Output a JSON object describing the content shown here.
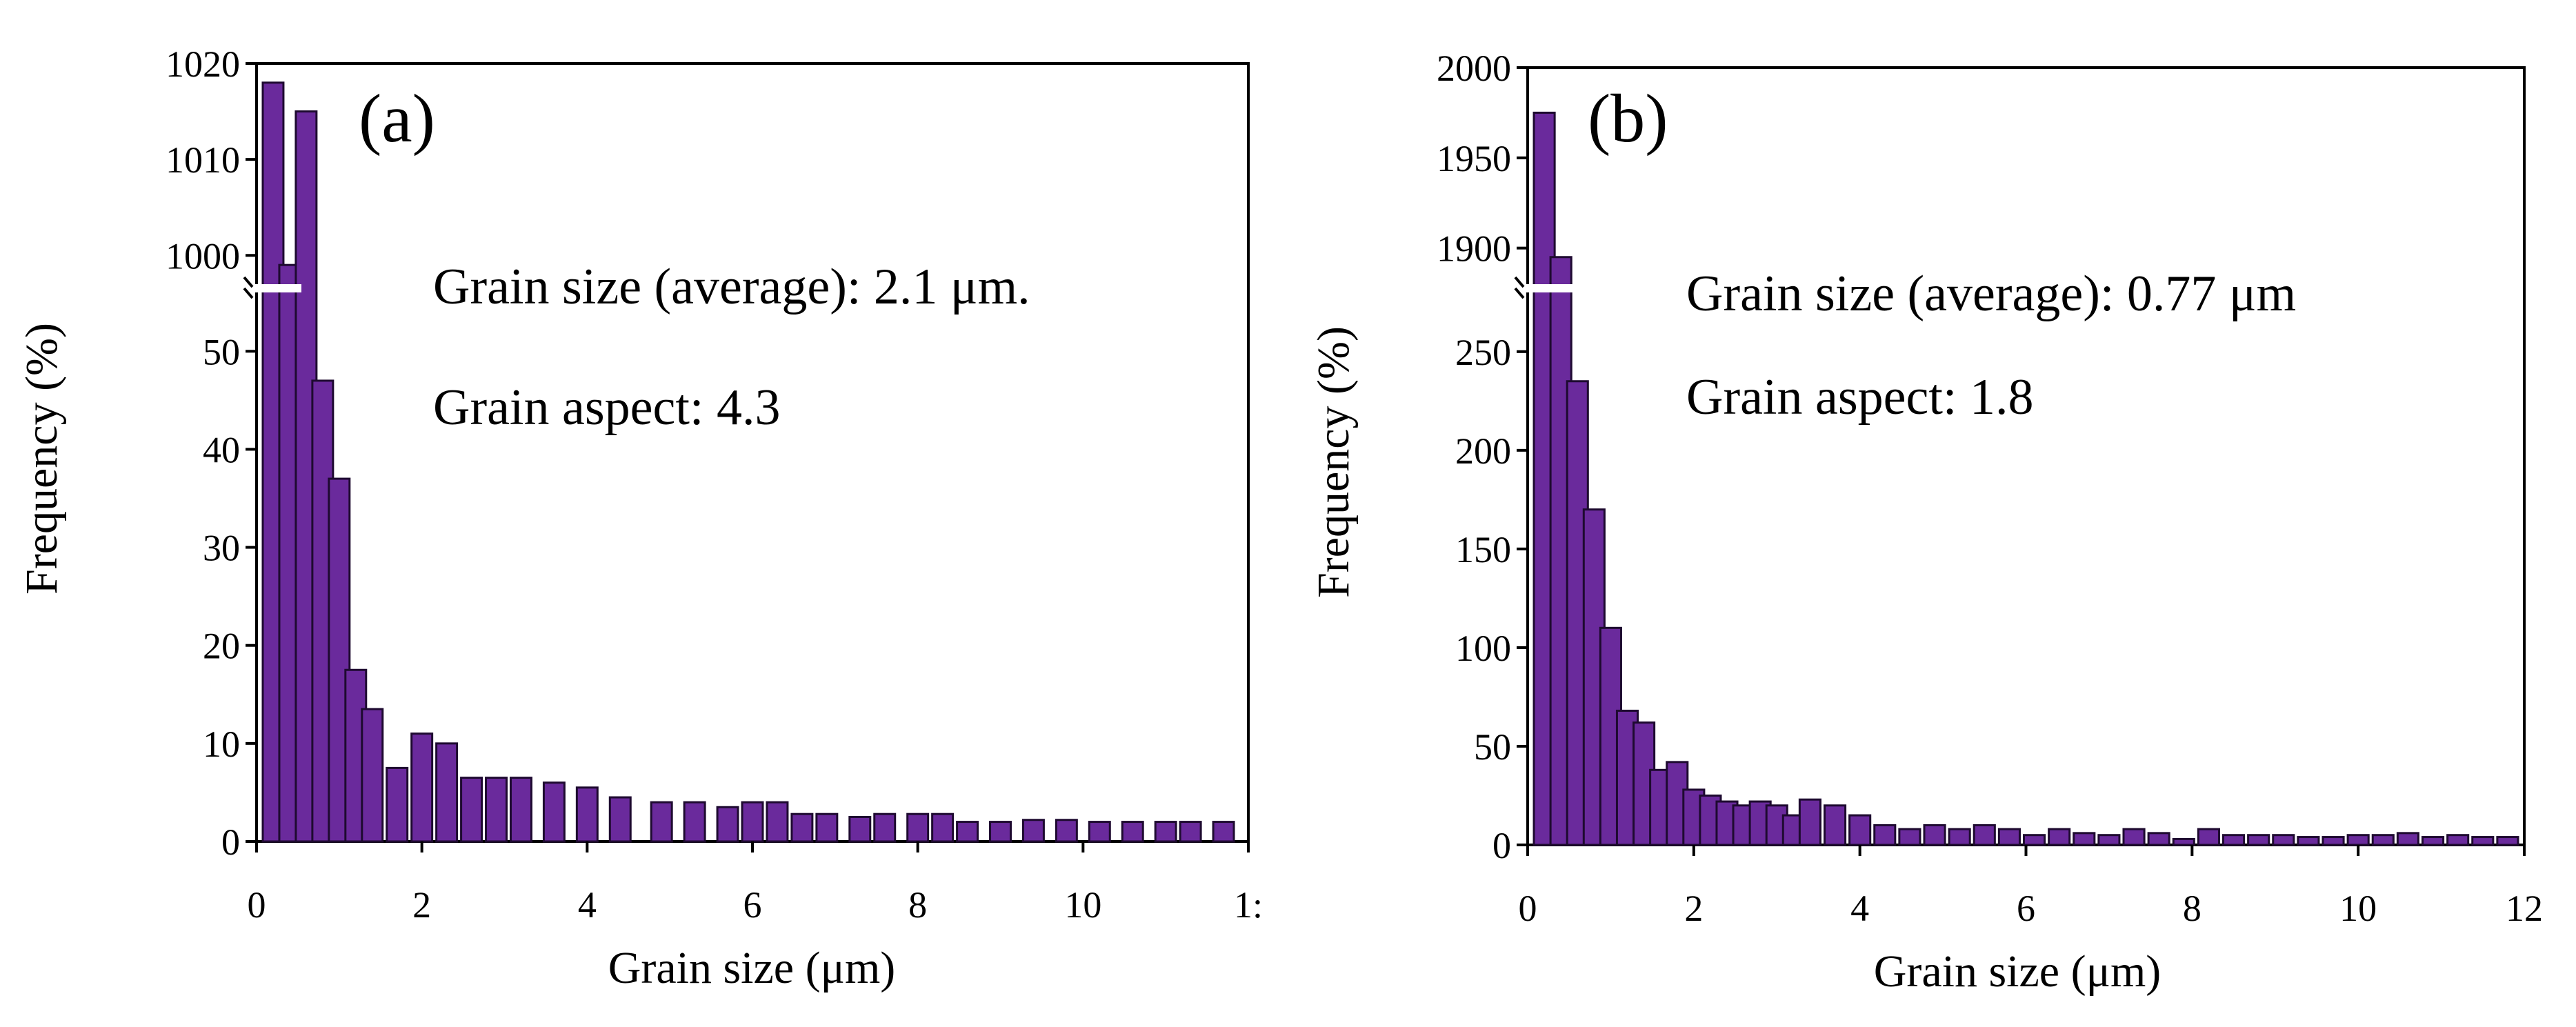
{
  "chart_data": [
    {
      "type": "bar",
      "panel_label": "(a)",
      "xlabel": "Grain size (μm)",
      "ylabel": "Frequency (%)",
      "annotations": [
        "Grain size (average): 2.1 μm.",
        "Grain aspect: 4.3"
      ],
      "xlim": [
        0,
        12
      ],
      "xticks": [
        "0",
        "2",
        "4",
        "6",
        "8",
        "10",
        "1:"
      ],
      "ylim_lower": [
        0,
        56
      ],
      "ylim_upper": [
        997,
        1020
      ],
      "yticks_lower": [
        "0",
        "10",
        "20",
        "30",
        "40",
        "50"
      ],
      "yticks_upper": [
        "1000",
        "1010",
        "1020"
      ],
      "bar_width": 0.25,
      "x": [
        0.2,
        0.4,
        0.6,
        0.8,
        1.0,
        1.2,
        1.4,
        1.7,
        2.0,
        2.3,
        2.6,
        2.9,
        3.2,
        3.6,
        4.0,
        4.4,
        4.9,
        5.3,
        5.7,
        6.0,
        6.3,
        6.6,
        6.9,
        7.3,
        7.6,
        8.0,
        8.3,
        8.6,
        9.0,
        9.4,
        9.8,
        10.2,
        10.6,
        11.0,
        11.3,
        11.7
      ],
      "values": [
        1018,
        999,
        1015,
        47,
        37,
        17.5,
        13.5,
        7.5,
        11,
        10,
        6.5,
        6.5,
        6.5,
        6,
        5.5,
        4.5,
        4,
        4,
        3.5,
        4,
        4,
        2.8,
        2.8,
        2.5,
        2.8,
        2.8,
        2.8,
        2.0,
        2.0,
        2.2,
        2.2,
        2.0,
        2.0,
        2.0,
        2.0,
        2.0
      ]
    },
    {
      "type": "bar",
      "panel_label": "(b)",
      "xlabel": "Grain size (μm)",
      "ylabel": "Frequency (%)",
      "annotations": [
        "Grain size (average): 0.77 μm",
        "Grain aspect: 1.8"
      ],
      "xlim": [
        0,
        12
      ],
      "xticks": [
        "0",
        "2",
        "4",
        "6",
        "8",
        "10",
        "12"
      ],
      "ylim_lower": [
        0,
        280
      ],
      "ylim_upper": [
        1880,
        2000
      ],
      "yticks_lower": [
        "0",
        "50",
        "100",
        "150",
        "200",
        "250"
      ],
      "yticks_upper": [
        "1900",
        "1950",
        "2000"
      ],
      "bar_width": 0.25,
      "x": [
        0.2,
        0.4,
        0.6,
        0.8,
        1.0,
        1.2,
        1.4,
        1.6,
        1.8,
        2.0,
        2.2,
        2.4,
        2.6,
        2.8,
        3.0,
        3.2,
        3.4,
        3.7,
        4.0,
        4.3,
        4.6,
        4.9,
        5.2,
        5.5,
        5.8,
        6.1,
        6.4,
        6.7,
        7.0,
        7.3,
        7.6,
        7.9,
        8.2,
        8.5,
        8.8,
        9.1,
        9.4,
        9.7,
        10.0,
        10.3,
        10.6,
        10.9,
        11.2,
        11.5,
        11.8
      ],
      "values": [
        1975,
        1895,
        235,
        170,
        110,
        68,
        62,
        38,
        42,
        28,
        25,
        22,
        20,
        22,
        20,
        15,
        23,
        20,
        15,
        10,
        8,
        10,
        8,
        10,
        8,
        5,
        8,
        6,
        5,
        8,
        6,
        3,
        8,
        5,
        5,
        5,
        4,
        4,
        5,
        5,
        6,
        4,
        5,
        4,
        4
      ]
    }
  ]
}
